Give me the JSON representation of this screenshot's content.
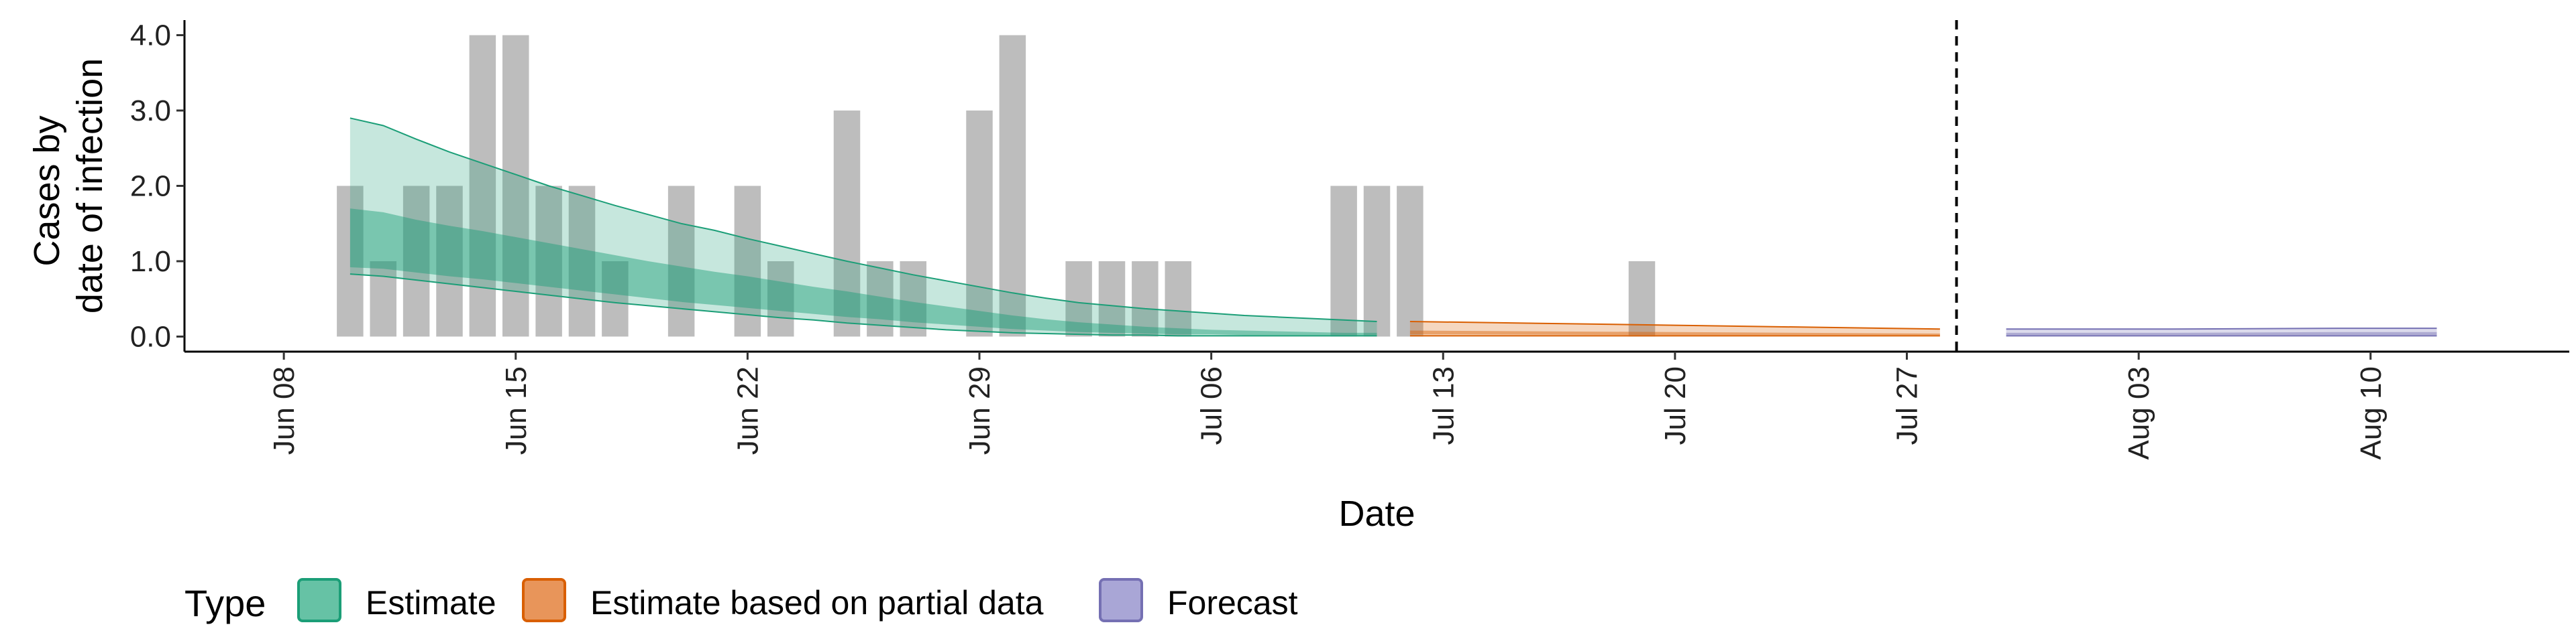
{
  "chart_data": {
    "type": "bar",
    "xlabel": "Date",
    "ylabel_lines": [
      "Cases by",
      "date of infection"
    ],
    "ylim": [
      -0.2,
      4.2
    ],
    "y_ticks": [
      0,
      1,
      2,
      3,
      4
    ],
    "y_tick_labels": [
      "0.0",
      "1.0",
      "2.0",
      "3.0",
      "4.0"
    ],
    "x_range": [
      "2020-06-05",
      "2020-08-16"
    ],
    "x_ticks": [
      "2020-06-08",
      "2020-06-15",
      "2020-06-22",
      "2020-06-29",
      "2020-07-06",
      "2020-07-13",
      "2020-07-20",
      "2020-07-27",
      "2020-08-03",
      "2020-08-10"
    ],
    "x_tick_labels": [
      "Jun 08",
      "Jun 15",
      "Jun 22",
      "Jun 29",
      "Jul 06",
      "Jul 13",
      "Jul 20",
      "Jul 27",
      "Aug 03",
      "Aug 10"
    ],
    "forecast_start": "2020-07-29",
    "bars": {
      "dates": [
        "2020-06-10",
        "2020-06-11",
        "2020-06-12",
        "2020-06-13",
        "2020-06-14",
        "2020-06-15",
        "2020-06-16",
        "2020-06-17",
        "2020-06-18",
        "2020-06-20",
        "2020-06-22",
        "2020-06-23",
        "2020-06-25",
        "2020-06-26",
        "2020-06-27",
        "2020-06-29",
        "2020-06-30",
        "2020-07-02",
        "2020-07-03",
        "2020-07-04",
        "2020-07-05",
        "2020-07-10",
        "2020-07-11",
        "2020-07-12",
        "2020-07-19"
      ],
      "values": [
        2,
        1,
        2,
        2,
        4,
        4,
        2,
        2,
        1,
        2,
        2,
        1,
        3,
        1,
        1,
        3,
        4,
        1,
        1,
        1,
        1,
        2,
        2,
        2,
        1
      ],
      "color": "#bdbdbd"
    },
    "bands": [
      {
        "name": "Estimate",
        "fill": "#1b9e77",
        "line": "#1b9e77",
        "dates": [
          "2020-06-10",
          "2020-06-11",
          "2020-06-12",
          "2020-06-13",
          "2020-06-14",
          "2020-06-15",
          "2020-06-16",
          "2020-06-17",
          "2020-06-18",
          "2020-06-19",
          "2020-06-20",
          "2020-06-21",
          "2020-06-22",
          "2020-06-23",
          "2020-06-24",
          "2020-06-25",
          "2020-06-26",
          "2020-06-27",
          "2020-06-28",
          "2020-06-29",
          "2020-06-30",
          "2020-07-01",
          "2020-07-02",
          "2020-07-03",
          "2020-07-04",
          "2020-07-05",
          "2020-07-06",
          "2020-07-07",
          "2020-07-08",
          "2020-07-09",
          "2020-07-10",
          "2020-07-11"
        ],
        "outer_upper": [
          2.9,
          2.8,
          2.62,
          2.45,
          2.3,
          2.15,
          2.0,
          1.87,
          1.74,
          1.62,
          1.5,
          1.41,
          1.3,
          1.2,
          1.1,
          1.0,
          0.91,
          0.82,
          0.74,
          0.66,
          0.58,
          0.51,
          0.45,
          0.41,
          0.37,
          0.34,
          0.31,
          0.28,
          0.26,
          0.24,
          0.22,
          0.2
        ],
        "inner_upper": [
          1.7,
          1.65,
          1.55,
          1.47,
          1.4,
          1.32,
          1.24,
          1.16,
          1.08,
          1.0,
          0.93,
          0.86,
          0.8,
          0.73,
          0.66,
          0.6,
          0.53,
          0.46,
          0.4,
          0.34,
          0.28,
          0.23,
          0.19,
          0.16,
          0.13,
          0.11,
          0.09,
          0.08,
          0.07,
          0.06,
          0.05,
          0.05
        ],
        "inner_lower": [
          0.92,
          0.9,
          0.85,
          0.8,
          0.76,
          0.71,
          0.66,
          0.61,
          0.56,
          0.51,
          0.46,
          0.42,
          0.38,
          0.34,
          0.3,
          0.26,
          0.23,
          0.19,
          0.16,
          0.13,
          0.1,
          0.08,
          0.06,
          0.05,
          0.04,
          0.03,
          0.03,
          0.02,
          0.02,
          0.02,
          0.02,
          0.02
        ],
        "outer_lower": [
          0.83,
          0.8,
          0.75,
          0.7,
          0.65,
          0.6,
          0.55,
          0.5,
          0.45,
          0.41,
          0.37,
          0.33,
          0.29,
          0.25,
          0.22,
          0.18,
          0.15,
          0.12,
          0.09,
          0.07,
          0.05,
          0.04,
          0.03,
          0.02,
          0.02,
          0.01,
          0.01,
          0.01,
          0.01,
          0.01,
          0.01,
          0.01
        ]
      },
      {
        "name": "Estimate based on partial data",
        "fill": "#d95f02",
        "line": "#d95f02",
        "dates": [
          "2020-07-12",
          "2020-07-20",
          "2020-07-28"
        ],
        "outer_upper": [
          0.2,
          0.15,
          0.1
        ],
        "inner_upper": [
          0.08,
          0.06,
          0.04
        ],
        "inner_lower": [
          0.03,
          0.02,
          0.02
        ],
        "outer_lower": [
          0.01,
          0.01,
          0.01
        ]
      },
      {
        "name": "Forecast",
        "fill": "#7570b3",
        "line": "#7570b3",
        "dates": [
          "2020-07-30",
          "2020-08-04",
          "2020-08-09",
          "2020-08-12"
        ],
        "outer_upper": [
          0.1,
          0.1,
          0.11,
          0.11
        ],
        "inner_upper": [
          0.05,
          0.05,
          0.06,
          0.06
        ],
        "inner_lower": [
          0.02,
          0.02,
          0.02,
          0.02
        ],
        "outer_lower": [
          0.01,
          0.01,
          0.01,
          0.01
        ]
      }
    ],
    "legend": {
      "title": "Type",
      "position": "bottom-left",
      "entries": [
        {
          "label": "Estimate",
          "fill": "#66c2a5",
          "border": "#1b9e77"
        },
        {
          "label": "Estimate based on partial data",
          "fill": "#e8955a",
          "border": "#d95f02"
        },
        {
          "label": "Forecast",
          "fill": "#a9a6d6",
          "border": "#7570b3"
        }
      ]
    }
  }
}
